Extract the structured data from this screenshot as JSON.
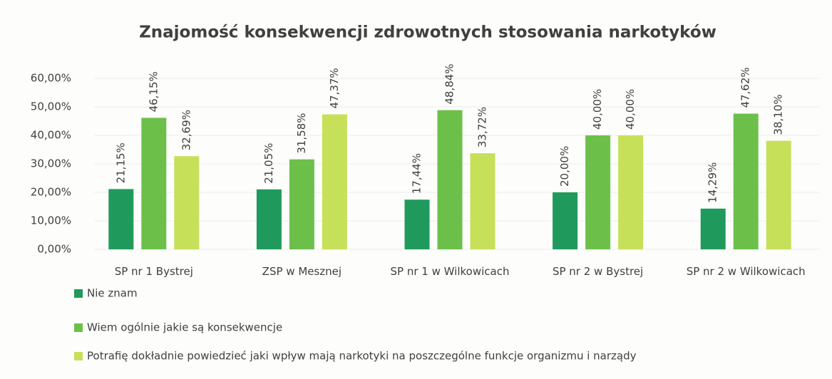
{
  "chart_data": {
    "type": "bar",
    "title": "Znajomość konsekwencji zdrowotnych stosowania narkotyków",
    "categories": [
      "SP nr 1 Bystrej",
      "ZSP w Mesznej",
      "SP nr 1 w Wilkowicach",
      "SP nr 2 w Bystrej",
      "SP nr 2 w Wilkowicach"
    ],
    "series": [
      {
        "name": "Nie znam",
        "color": "#1f9a5c",
        "values": [
          21.15,
          21.05,
          17.44,
          20.0,
          14.29
        ],
        "value_labels": [
          "21,15%",
          "21,05%",
          "17,44%",
          "20,00%",
          "14,29%"
        ]
      },
      {
        "name": "Wiem ogólnie jakie są konsekwencje",
        "color": "#6cc04a",
        "values": [
          46.15,
          31.58,
          48.84,
          40.0,
          47.62
        ],
        "value_labels": [
          "46,15%",
          "31,58%",
          "48,84%",
          "40,00%",
          "47,62%"
        ]
      },
      {
        "name": "Potrafię dokładnie powiedzieć jaki wpływ mają narkotyki na poszczególne funkcje organizmu i narządy",
        "color": "#c6e05a",
        "values": [
          32.69,
          47.37,
          33.72,
          40.0,
          38.1
        ],
        "value_labels": [
          "32,69%",
          "47,37%",
          "33,72%",
          "40,00%",
          "38,10%"
        ]
      }
    ],
    "ylim": [
      0,
      60
    ],
    "yticks": [
      {
        "value": 0,
        "label": "0,00%"
      },
      {
        "value": 10,
        "label": "10,00%"
      },
      {
        "value": 20,
        "label": "20,00%"
      },
      {
        "value": 30,
        "label": "30,00%"
      },
      {
        "value": 40,
        "label": "40,00%"
      },
      {
        "value": 50,
        "label": "50,00%"
      },
      {
        "value": 60,
        "label": "60,00%"
      }
    ],
    "grid": true
  }
}
